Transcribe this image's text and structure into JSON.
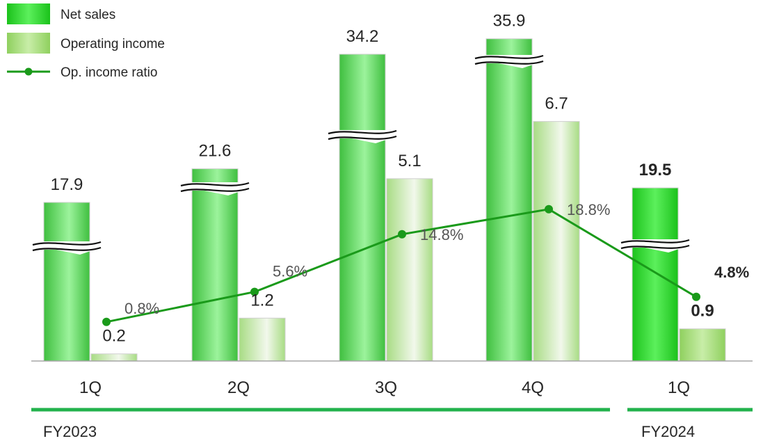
{
  "chart_data": {
    "type": "bar",
    "categories": [
      "1Q",
      "2Q",
      "3Q",
      "4Q",
      "1Q"
    ],
    "groups": [
      {
        "label": "FY2023",
        "categories": [
          "1Q",
          "2Q",
          "3Q",
          "4Q"
        ]
      },
      {
        "label": "FY2024",
        "categories": [
          "1Q"
        ]
      }
    ],
    "series": [
      {
        "name": "Net sales",
        "values": [
          17.9,
          21.6,
          34.2,
          35.9,
          19.5
        ],
        "labels": [
          "17.9",
          "21.6",
          "34.2",
          "35.9",
          "19.5"
        ]
      },
      {
        "name": "Operating income",
        "values": [
          0.2,
          1.2,
          5.1,
          6.7,
          0.9
        ],
        "labels": [
          "0.2",
          "1.2",
          "5.1",
          "6.7",
          "0.9"
        ]
      },
      {
        "name": "Op. income ratio",
        "type": "line",
        "values": [
          0.8,
          5.6,
          14.8,
          18.8,
          4.8
        ],
        "labels": [
          "0.8%",
          "5.6%",
          "14.8%",
          "18.8%",
          "4.8%"
        ]
      }
    ],
    "axis_break": true,
    "grid": false,
    "legend_position": "top-left",
    "highlight_last_category": true,
    "colors": {
      "net_sales": "#5fd85f",
      "net_sales_highlight": "#2ecf2e",
      "operating_income": "#c6eaa6",
      "line": "#1a9a1a",
      "group_rule": "#22b24c",
      "axis": "#a6a6a6",
      "text": "#262626"
    }
  }
}
